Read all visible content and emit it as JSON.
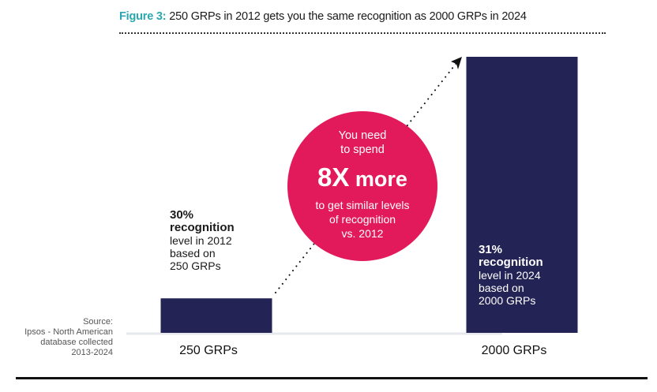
{
  "header": {
    "figure_label": "Figure 3:",
    "title_text": "250 GRPs in 2012 gets you the same recognition as 2000 GRPs in 2024"
  },
  "colors": {
    "bar": "#232356",
    "accent_teal": "#2aa7b0",
    "bubble": "#e21a5c",
    "baseline": "#e6e8ee"
  },
  "chart_data": {
    "type": "bar",
    "title": "250 GRPs in 2012 gets you the same recognition as 2000 GRPs in 2024",
    "categories": [
      "250 GRPs",
      "2000 GRPs"
    ],
    "values": [
      250,
      2000
    ],
    "value_unit": "GRPs",
    "recognition": [
      {
        "category": "250 GRPs",
        "year": "2012",
        "recognition_pct": 30
      },
      {
        "category": "2000 GRPs",
        "year": "2024",
        "recognition_pct": 31
      }
    ],
    "xlabel": "",
    "ylabel": "",
    "ylim": [
      0,
      2000
    ],
    "grid": false,
    "annotations": [
      "30% recognition level in 2012 based on 250 GRPs",
      "31% recognition level in 2024 based on 2000 GRPs",
      "You need to spend 8X more to get similar levels of recognition vs. 2012"
    ]
  },
  "annotation_left": {
    "pct": "30%",
    "rec": "recognition",
    "lines": [
      "level in 2012",
      "based on",
      "250 GRPs"
    ]
  },
  "annotation_right": {
    "pct": "31%",
    "rec": "recognition",
    "lines": [
      "level in 2024",
      "based on",
      "2000 GRPs"
    ]
  },
  "bubble": {
    "line1": "You need",
    "line2": "to spend",
    "big_num": "8X",
    "big_word": "more",
    "line3": "to get similar levels",
    "line4": "of recognition",
    "line5": "vs. 2012"
  },
  "source": {
    "line1": "Source:",
    "line2": "Ipsos - North American",
    "line3": "database collected",
    "line4": "2013-2024"
  }
}
